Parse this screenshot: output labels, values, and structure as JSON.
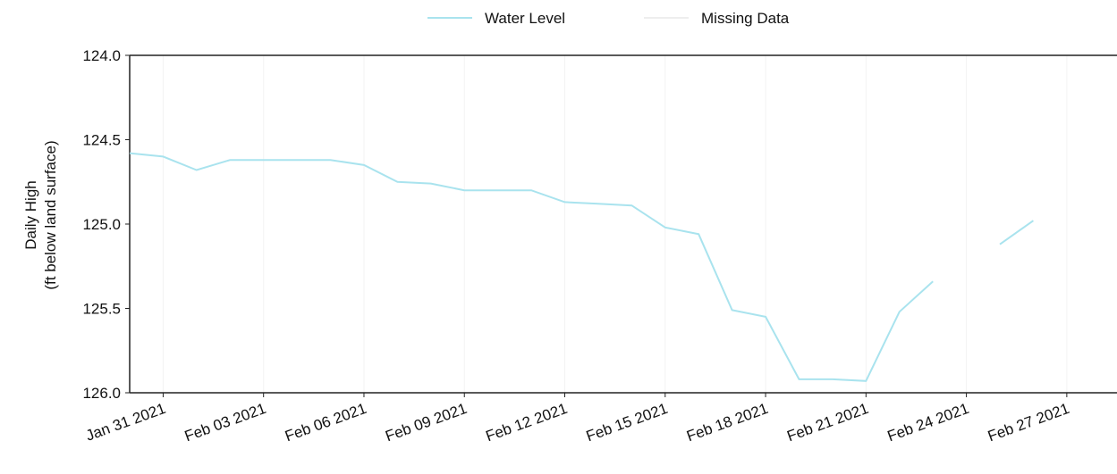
{
  "chart_data": {
    "type": "line",
    "ylabel": [
      "Daily High",
      "(ft below land surface)"
    ],
    "x": [
      "2021-01-30",
      "2021-01-31",
      "2021-02-01",
      "2021-02-02",
      "2021-02-03",
      "2021-02-04",
      "2021-02-05",
      "2021-02-06",
      "2021-02-07",
      "2021-02-08",
      "2021-02-09",
      "2021-02-10",
      "2021-02-11",
      "2021-02-12",
      "2021-02-13",
      "2021-02-14",
      "2021-02-15",
      "2021-02-16",
      "2021-02-17",
      "2021-02-18",
      "2021-02-19",
      "2021-02-20",
      "2021-02-21",
      "2021-02-22",
      "2021-02-23",
      "2021-02-24",
      "2021-02-25",
      "2021-02-26"
    ],
    "series": [
      {
        "name": "Water Level",
        "color": "#a9e3ee",
        "values": [
          124.58,
          124.6,
          124.68,
          124.62,
          124.62,
          124.62,
          124.62,
          124.65,
          124.75,
          124.76,
          124.8,
          124.8,
          124.8,
          124.87,
          124.88,
          124.89,
          125.02,
          125.06,
          125.51,
          125.55,
          125.92,
          125.92,
          125.93,
          125.52,
          125.34,
          null,
          125.12,
          124.98
        ]
      },
      {
        "name": "Missing Data",
        "color": "#eeeeee",
        "values": [
          null,
          null,
          null,
          null,
          null,
          null,
          null,
          null,
          null,
          null,
          null,
          null,
          null,
          null,
          null,
          null,
          null,
          null,
          null,
          null,
          null,
          null,
          null,
          null,
          null,
          null,
          null,
          null
        ]
      }
    ],
    "xlim": [
      "2021-01-30",
      "2021-02-28T12:00"
    ],
    "xticks": [
      {
        "value": "2021-01-31",
        "label": "Jan 31 2021"
      },
      {
        "value": "2021-02-03",
        "label": "Feb 03 2021"
      },
      {
        "value": "2021-02-06",
        "label": "Feb 06 2021"
      },
      {
        "value": "2021-02-09",
        "label": "Feb 09 2021"
      },
      {
        "value": "2021-02-12",
        "label": "Feb 12 2021"
      },
      {
        "value": "2021-02-15",
        "label": "Feb 15 2021"
      },
      {
        "value": "2021-02-18",
        "label": "Feb 18 2021"
      },
      {
        "value": "2021-02-21",
        "label": "Feb 21 2021"
      },
      {
        "value": "2021-02-24",
        "label": "Feb 24 2021"
      },
      {
        "value": "2021-02-27",
        "label": "Feb 27 2021"
      }
    ],
    "ylim": [
      124,
      126
    ],
    "y_inverted": true,
    "yticks": [
      {
        "value": 124,
        "label": "124.0"
      },
      124.5,
      {
        "value": 125,
        "label": "125.0"
      },
      125.5,
      {
        "value": 126,
        "label": "126.0"
      }
    ],
    "grid": "x",
    "legend": "top"
  }
}
